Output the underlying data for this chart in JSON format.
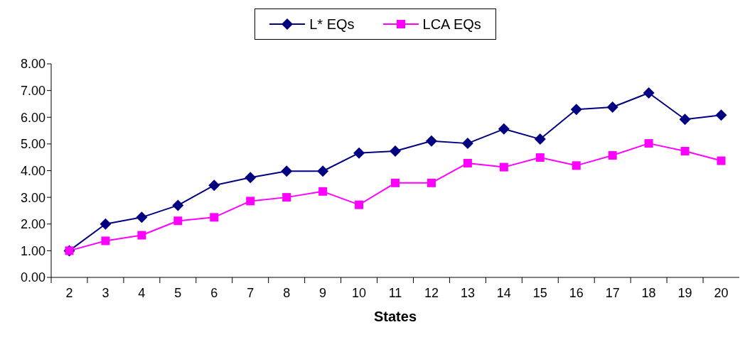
{
  "chart_data": {
    "type": "line",
    "xlabel": "States",
    "categories": [
      "2",
      "3",
      "4",
      "5",
      "6",
      "7",
      "8",
      "9",
      "10",
      "11",
      "12",
      "13",
      "14",
      "15",
      "16",
      "17",
      "18",
      "19",
      "20"
    ],
    "series": [
      {
        "name": "L* EQs",
        "color": "#000080",
        "marker": "diamond",
        "values": [
          1.0,
          2.0,
          2.25,
          2.7,
          3.45,
          3.74,
          3.98,
          3.98,
          4.66,
          4.73,
          5.11,
          5.02,
          5.56,
          5.18,
          6.29,
          6.38,
          6.91,
          5.92,
          6.08
        ]
      },
      {
        "name": "LCA EQs",
        "color": "#ff00ff",
        "marker": "square",
        "values": [
          1.0,
          1.37,
          1.58,
          2.12,
          2.25,
          2.86,
          3.0,
          3.22,
          2.72,
          3.54,
          3.54,
          4.28,
          4.13,
          4.49,
          4.19,
          4.57,
          5.02,
          4.73,
          4.37
        ]
      }
    ],
    "ylim": [
      0,
      8
    ],
    "yticks": [
      {
        "value": 0,
        "label": "0.00"
      },
      {
        "value": 1,
        "label": "1.00"
      },
      {
        "value": 2,
        "label": "2.00"
      },
      {
        "value": 3,
        "label": "3.00"
      },
      {
        "value": 4,
        "label": "4.00"
      },
      {
        "value": 5,
        "label": "5.00"
      },
      {
        "value": 6,
        "label": "6.00"
      },
      {
        "value": 7,
        "label": "7.00"
      },
      {
        "value": 8,
        "label": "8.00"
      }
    ],
    "grid": false,
    "legend": "top",
    "line_style": "solid"
  }
}
